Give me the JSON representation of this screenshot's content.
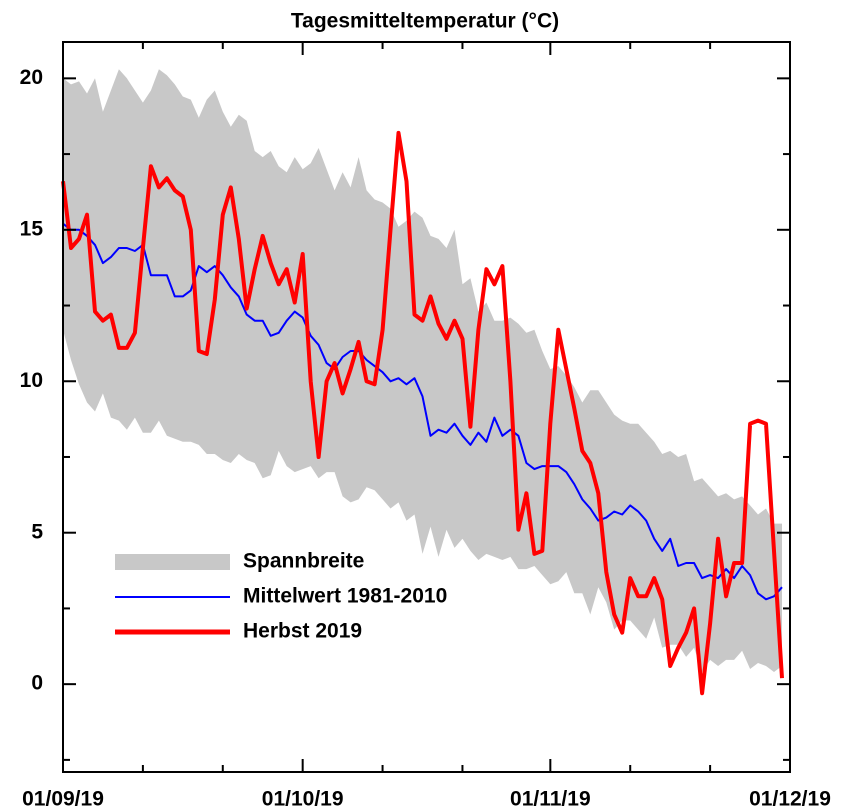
{
  "chart_data": {
    "type": "line",
    "title": "Tagesmitteltemperatur (°C)",
    "x": [
      "01/09/19",
      "02/09/19",
      "03/09/19",
      "04/09/19",
      "05/09/19",
      "06/09/19",
      "07/09/19",
      "08/09/19",
      "09/09/19",
      "10/09/19",
      "11/09/19",
      "12/09/19",
      "13/09/19",
      "14/09/19",
      "15/09/19",
      "16/09/19",
      "17/09/19",
      "18/09/19",
      "19/09/19",
      "20/09/19",
      "21/09/19",
      "22/09/19",
      "23/09/19",
      "24/09/19",
      "25/09/19",
      "26/09/19",
      "27/09/19",
      "28/09/19",
      "29/09/19",
      "30/09/19",
      "01/10/19",
      "02/10/19",
      "03/10/19",
      "04/10/19",
      "05/10/19",
      "06/10/19",
      "07/10/19",
      "08/10/19",
      "09/10/19",
      "10/10/19",
      "11/10/19",
      "12/10/19",
      "13/10/19",
      "14/10/19",
      "15/10/19",
      "16/10/19",
      "17/10/19",
      "18/10/19",
      "19/10/19",
      "20/10/19",
      "21/10/19",
      "22/10/19",
      "23/10/19",
      "24/10/19",
      "25/10/19",
      "26/10/19",
      "27/10/19",
      "28/10/19",
      "29/10/19",
      "30/10/19",
      "31/10/19",
      "01/11/19",
      "02/11/19",
      "03/11/19",
      "04/11/19",
      "05/11/19",
      "06/11/19",
      "07/11/19",
      "08/11/19",
      "09/11/19",
      "10/11/19",
      "11/11/19",
      "12/11/19",
      "13/11/19",
      "14/11/19",
      "15/11/19",
      "16/11/19",
      "17/11/19",
      "18/11/19",
      "19/11/19",
      "20/11/19",
      "21/11/19",
      "22/11/19",
      "23/11/19",
      "24/11/19",
      "25/11/19",
      "26/11/19",
      "27/11/19",
      "28/11/19",
      "29/11/19",
      "30/11/19"
    ],
    "series": [
      {
        "name": "Spannbreite",
        "color": "#c8c8c8",
        "low": [
          11.7,
          10.7,
          9.9,
          9.3,
          9.0,
          9.6,
          8.8,
          8.7,
          8.4,
          8.8,
          8.3,
          8.3,
          8.7,
          8.2,
          8.1,
          8.0,
          8.0,
          7.9,
          7.6,
          7.6,
          7.4,
          7.3,
          7.6,
          7.4,
          7.3,
          6.8,
          6.9,
          7.7,
          7.2,
          7.0,
          7.1,
          7.2,
          6.8,
          7.0,
          7.0,
          6.2,
          6.0,
          6.1,
          6.5,
          6.4,
          6.1,
          5.8,
          6.0,
          5.4,
          5.6,
          4.3,
          5.2,
          4.2,
          5.1,
          4.5,
          4.8,
          4.4,
          4.1,
          4.3,
          4.2,
          4.1,
          4.2,
          3.8,
          3.8,
          3.9,
          3.6,
          3.3,
          3.4,
          3.7,
          3.0,
          3.0,
          2.3,
          3.2,
          2.7,
          1.8,
          2.1,
          2.1,
          1.8,
          1.5,
          2.2,
          1.2,
          1.3,
          1.3,
          0.9,
          1.2,
          0.4,
          0.8,
          0.6,
          0.8,
          0.8,
          1.1,
          0.5,
          0.7,
          0.6,
          0.4,
          0.6
        ],
        "high": [
          20.0,
          19.8,
          19.9,
          19.5,
          20.0,
          18.9,
          19.6,
          20.3,
          20.0,
          19.6,
          19.2,
          19.6,
          20.3,
          20.1,
          19.8,
          19.4,
          19.3,
          18.7,
          19.3,
          19.6,
          18.9,
          18.4,
          18.8,
          18.6,
          17.6,
          17.4,
          17.6,
          17.1,
          16.9,
          17.4,
          17.0,
          17.2,
          17.7,
          17.0,
          16.3,
          16.9,
          16.4,
          17.4,
          16.3,
          16.0,
          15.9,
          15.7,
          15.1,
          15.3,
          15.6,
          15.4,
          14.8,
          14.7,
          14.4,
          15.0,
          13.2,
          13.4,
          12.3,
          12.6,
          12.0,
          12.0,
          12.1,
          11.9,
          11.6,
          11.7,
          11.0,
          10.4,
          10.5,
          10.2,
          9.8,
          9.3,
          9.7,
          9.7,
          9.3,
          8.9,
          8.7,
          8.6,
          8.6,
          8.3,
          8.0,
          7.6,
          7.7,
          7.5,
          7.6,
          6.7,
          6.8,
          6.5,
          6.2,
          6.3,
          6.1,
          6.2,
          5.9,
          5.6,
          5.8,
          5.3,
          5.3
        ]
      },
      {
        "name": "Mittelwert 1981-2010",
        "color": "#0000ff",
        "values": [
          15.2,
          15.0,
          15.0,
          14.8,
          14.5,
          13.9,
          14.1,
          14.4,
          14.4,
          14.3,
          14.5,
          13.5,
          13.5,
          13.5,
          12.8,
          12.8,
          13.0,
          13.8,
          13.6,
          13.8,
          13.5,
          13.1,
          12.8,
          12.2,
          12.0,
          12.0,
          11.5,
          11.6,
          12.0,
          12.3,
          12.1,
          11.5,
          11.2,
          10.6,
          10.4,
          10.8,
          11.0,
          11.0,
          10.7,
          10.5,
          10.3,
          10.0,
          10.1,
          9.9,
          10.1,
          9.5,
          8.2,
          8.4,
          8.3,
          8.6,
          8.2,
          7.9,
          8.3,
          8.0,
          8.8,
          8.2,
          8.4,
          8.2,
          7.3,
          7.1,
          7.2,
          7.2,
          7.2,
          7.0,
          6.6,
          6.1,
          5.8,
          5.4,
          5.5,
          5.7,
          5.6,
          5.9,
          5.7,
          5.4,
          4.8,
          4.4,
          4.8,
          3.9,
          4.0,
          4.0,
          3.5,
          3.6,
          3.5,
          3.8,
          3.5,
          3.9,
          3.6,
          3.0,
          2.8,
          2.9,
          3.2
        ]
      },
      {
        "name": "Herbst 2019",
        "color": "#ff0000",
        "values": [
          16.6,
          14.4,
          14.7,
          15.5,
          12.3,
          12.0,
          12.2,
          11.1,
          11.1,
          11.6,
          14.4,
          17.1,
          16.4,
          16.7,
          16.3,
          16.1,
          15.0,
          11.0,
          10.9,
          12.7,
          15.5,
          16.4,
          14.7,
          12.4,
          13.7,
          14.8,
          13.9,
          13.2,
          13.7,
          12.6,
          14.2,
          10.0,
          7.5,
          10.0,
          10.6,
          9.6,
          10.4,
          11.3,
          10.0,
          9.9,
          11.7,
          15.0,
          18.2,
          16.6,
          12.2,
          12.0,
          12.8,
          11.9,
          11.4,
          12.0,
          11.4,
          8.5,
          11.7,
          13.7,
          13.2,
          13.8,
          10.0,
          5.1,
          6.3,
          4.3,
          4.4,
          8.6,
          11.7,
          10.4,
          9.1,
          7.7,
          7.3,
          6.3,
          3.7,
          2.3,
          1.7,
          3.5,
          2.9,
          2.9,
          3.5,
          2.8,
          0.6,
          1.2,
          1.7,
          2.5,
          -0.3,
          2.0,
          4.8,
          2.9,
          4.0,
          4.0,
          8.6,
          8.7,
          8.6,
          4.4,
          0.2
        ]
      }
    ],
    "xlim": [
      "01/09/19",
      "01/12/19"
    ],
    "xticks": [
      "01/09/19",
      "01/10/19",
      "01/11/19",
      "01/12/19"
    ],
    "xminor_ticks": [
      "11/09/19",
      "21/09/19",
      "11/10/19",
      "21/10/19",
      "11/11/19",
      "21/11/19"
    ],
    "ylim": [
      -2.9,
      21.2
    ],
    "yticks": [
      0,
      5,
      10,
      15,
      20
    ],
    "yminor_ticks": [
      -2.5,
      2.5,
      7.5,
      12.5,
      17.5
    ],
    "legend": "lower left"
  }
}
